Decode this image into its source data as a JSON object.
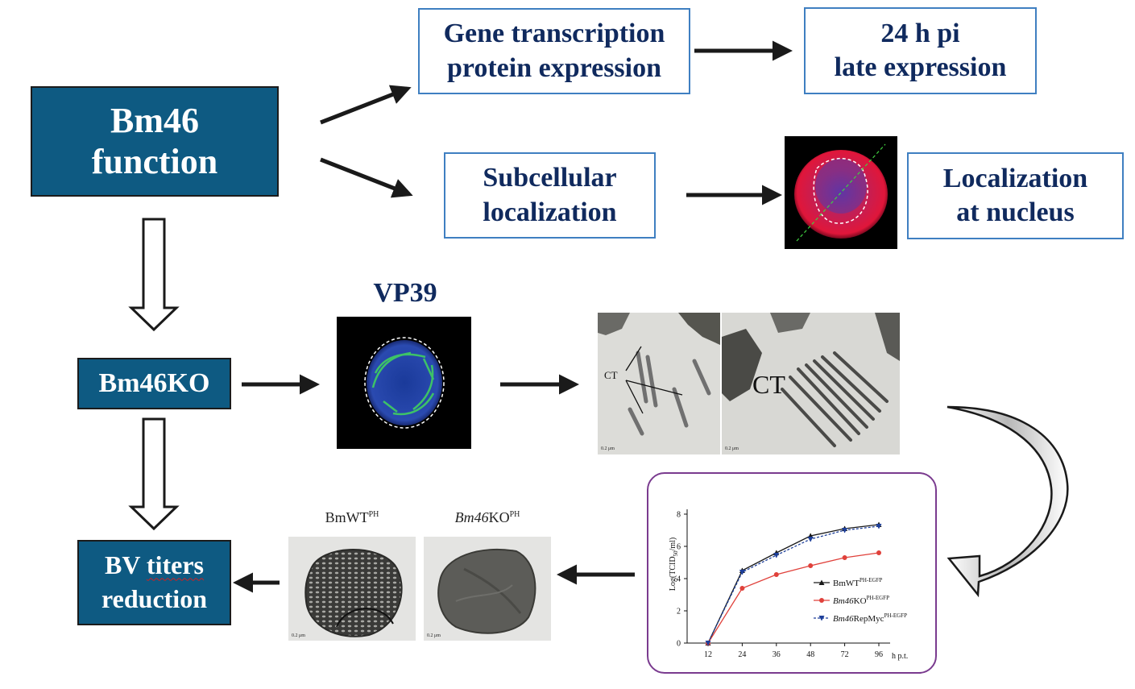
{
  "main_box": {
    "line1": "Bm46",
    "line2": "function"
  },
  "ko_box": {
    "label": "Bm46KO"
  },
  "bv_box": {
    "word1": "BV",
    "word2": "titers",
    "line2": "reduction"
  },
  "gene_box": {
    "line1": "Gene transcription",
    "line2": "protein expression"
  },
  "late_box": {
    "line1": "24 h pi",
    "line2": "late expression"
  },
  "sub_box": {
    "line1": "Subcellular",
    "line2": "localization"
  },
  "nucleus_box": {
    "line1": "Localization",
    "line2": "at nucleus"
  },
  "vp39_label": "VP39",
  "tem": {
    "ct_small": "CT",
    "ct_large": "CT",
    "scale_left": "0.2 μm",
    "scale_right": "0.2 μm"
  },
  "bv_images": {
    "left_title": "BmWT",
    "left_sup": "PH",
    "right_title_italic": "Bm46",
    "right_title": "KO",
    "right_sup": "PH",
    "scale_left": "0.2 μm",
    "scale_right": "0.2 μm"
  },
  "chart_data": {
    "type": "line",
    "title": "",
    "xlabel": "h p.t.",
    "ylabel": "Log(TCID50/ml)",
    "ylabel_main": "Log(TCID",
    "ylabel_sub": "50",
    "ylabel_tail": "/ml)",
    "categories": [
      "12",
      "24",
      "36",
      "48",
      "72",
      "96"
    ],
    "ylim": [
      0,
      8
    ],
    "yticks": [
      "0",
      "2",
      "4",
      "6",
      "8"
    ],
    "series": [
      {
        "name": "BmWTPH-EGFP",
        "name_italic": "",
        "name_main": "BmWT",
        "name_sup": "PH-EGFP",
        "values": [
          0,
          4.5,
          5.6,
          6.65,
          7.1,
          7.35
        ],
        "color": "#1a1a1a",
        "marker": "triangle-up",
        "dash": "solid"
      },
      {
        "name": "Bm46KOPH-EGFP",
        "name_italic": "Bm46",
        "name_main": "KO",
        "name_sup": "PH-EGFP",
        "values": [
          0,
          3.4,
          4.25,
          4.8,
          5.3,
          5.6
        ],
        "color": "#e0413b",
        "marker": "circle",
        "dash": "solid"
      },
      {
        "name": "Bm46RepMycPH-EGFP",
        "name_italic": "Bm46",
        "name_main": "RepMyc",
        "name_sup": "PH-EGFP",
        "values": [
          0,
          4.4,
          5.45,
          6.45,
          7.0,
          7.25
        ],
        "color": "#1d3f9a",
        "marker": "triangle-down",
        "dash": "dashed"
      }
    ],
    "legend_position": "right",
    "grid": false
  }
}
